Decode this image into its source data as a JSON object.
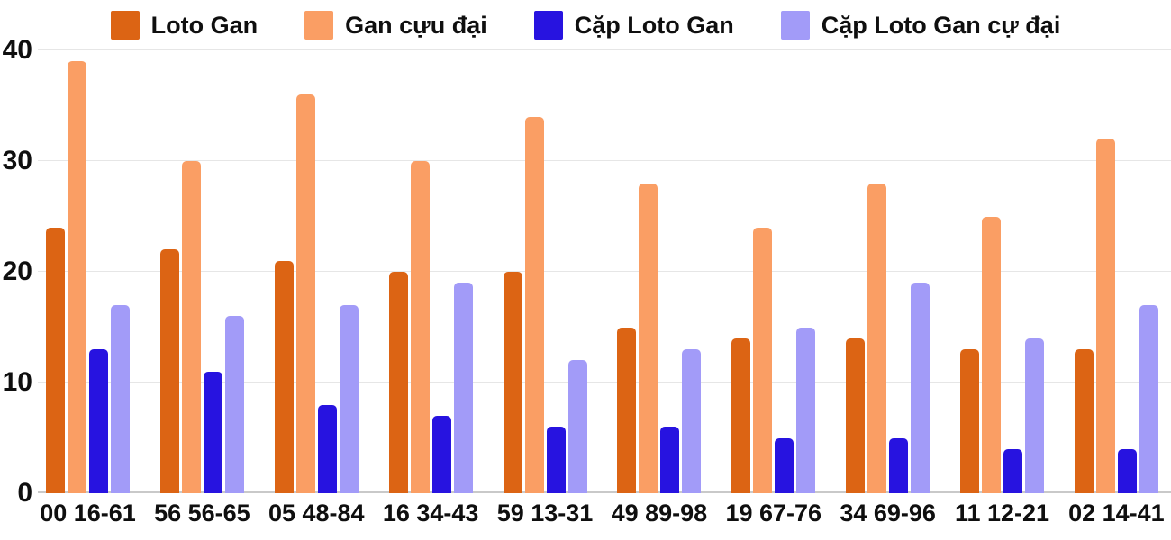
{
  "chart_data": {
    "type": "bar",
    "title": "",
    "xlabel": "",
    "ylabel": "",
    "categories": [
      "00 16-61",
      "56 56-65",
      "05 48-84",
      "16 34-43",
      "59 13-31",
      "49 89-98",
      "19 67-76",
      "34 69-96",
      "11 12-21",
      "02 14-41"
    ],
    "series": [
      {
        "name": "Loto Gan",
        "color": "#DC6414",
        "values": [
          24,
          22,
          21,
          20,
          20,
          15,
          14,
          14,
          13,
          13
        ]
      },
      {
        "name": "Gan cựu đại",
        "color": "#FA9E64",
        "values": [
          39,
          30,
          36,
          30,
          34,
          28,
          24,
          28,
          25,
          32
        ]
      },
      {
        "name": "Cặp Loto Gan",
        "color": "#2713E0",
        "values": [
          13,
          11,
          8,
          7,
          6,
          6,
          5,
          5,
          4,
          4
        ]
      },
      {
        "name": "Cặp Loto Gan cự đại",
        "color": "#A29BF8",
        "values": [
          17,
          16,
          17,
          19,
          12,
          13,
          15,
          19,
          14,
          17
        ]
      }
    ],
    "ylim": [
      0,
      40
    ],
    "yticks": [
      0,
      10,
      20,
      30,
      40
    ],
    "grid": true,
    "legend_position": "top"
  },
  "colors": {
    "gridline": "#E6E6E6",
    "axis_line": "#C9C9C9",
    "text": "#0F0F0F",
    "background": "#FFFFFF"
  }
}
